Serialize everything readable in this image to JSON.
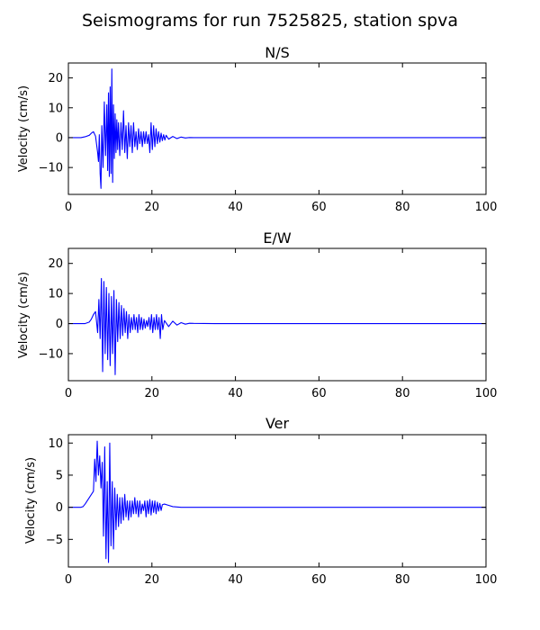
{
  "figure": {
    "title": "Seismograms for run 7525825, station spva"
  },
  "chart_data": [
    {
      "type": "line",
      "title": "N/S",
      "xlabel": "",
      "ylabel": "Velocity (cm/s)",
      "xlim": [
        0,
        100
      ],
      "ylim": [
        -19,
        25
      ],
      "xticks": [
        0,
        20,
        40,
        60,
        80,
        100
      ],
      "yticks": [
        -10,
        0,
        10,
        20
      ],
      "grid": false,
      "series": [
        {
          "color": "#0000ff",
          "x": [
            0,
            3,
            4,
            5,
            5.5,
            6,
            6.5,
            7,
            7.2,
            7.4,
            7.6,
            7.8,
            8,
            8.3,
            8.6,
            8.9,
            9.2,
            9.4,
            9.6,
            9.8,
            10,
            10.2,
            10.4,
            10.6,
            10.8,
            11,
            11.2,
            11.4,
            11.6,
            11.8,
            12,
            12.3,
            12.6,
            12.9,
            13.2,
            13.5,
            13.8,
            14.1,
            14.4,
            14.7,
            15,
            15.3,
            15.6,
            15.9,
            16.2,
            16.5,
            16.8,
            17.1,
            17.4,
            17.7,
            18,
            18.3,
            18.6,
            18.9,
            19.2,
            19.5,
            19.8,
            20.1,
            20.4,
            20.7,
            21,
            21.3,
            21.6,
            21.9,
            22.2,
            22.5,
            22.8,
            23.1,
            23.4,
            24,
            25,
            26,
            27,
            28,
            29,
            30,
            35,
            100
          ],
          "values": [
            0,
            0,
            0.3,
            0.8,
            1.5,
            2,
            0.5,
            -5,
            -8,
            1,
            -12,
            -17,
            4,
            -10,
            12,
            -6,
            11,
            -11,
            15,
            -13,
            17,
            -12,
            23,
            -15,
            11,
            -7,
            8,
            -5,
            6,
            -4,
            5,
            -6,
            5,
            -4,
            9,
            -5,
            4,
            -7,
            5,
            -3,
            4,
            -5,
            5,
            -3,
            2,
            -4,
            3,
            -2,
            2,
            -3,
            2,
            -2,
            2,
            -2,
            1,
            -5,
            5,
            -4,
            4,
            -3,
            3,
            -2,
            2,
            -1.5,
            1.5,
            -1,
            1,
            -0.8,
            0.8,
            -0.5,
            0.4,
            -0.3,
            0.2,
            -0.1,
            0.05,
            0,
            0,
            0
          ]
        }
      ]
    },
    {
      "type": "line",
      "title": "E/W",
      "xlabel": "",
      "ylabel": "Velocity (cm/s)",
      "xlim": [
        0,
        100
      ],
      "ylim": [
        -19,
        25
      ],
      "xticks": [
        0,
        20,
        40,
        60,
        80,
        100
      ],
      "yticks": [
        -10,
        0,
        10,
        20
      ],
      "grid": false,
      "series": [
        {
          "color": "#0000ff",
          "x": [
            0,
            4,
            5,
            5.5,
            6,
            6.5,
            7,
            7.3,
            7.6,
            7.9,
            8.2,
            8.5,
            8.8,
            9.1,
            9.4,
            9.7,
            10,
            10.3,
            10.6,
            10.9,
            11.2,
            11.5,
            11.8,
            12.1,
            12.4,
            12.7,
            13,
            13.3,
            13.6,
            13.9,
            14.2,
            14.5,
            14.8,
            15.1,
            15.4,
            15.7,
            16,
            16.3,
            16.6,
            16.9,
            17.2,
            17.5,
            17.8,
            18.1,
            18.4,
            18.7,
            19,
            19.3,
            19.6,
            19.9,
            20.2,
            20.5,
            20.8,
            21.1,
            21.4,
            21.7,
            22,
            22.3,
            22.6,
            23,
            24,
            25,
            26,
            27,
            28,
            29,
            30,
            35,
            100
          ],
          "values": [
            0,
            0,
            0.5,
            1.5,
            3,
            4,
            -3,
            8,
            -5,
            15,
            -16,
            14,
            -10,
            12,
            -12,
            10,
            -14,
            9,
            -10,
            11,
            -17,
            8,
            -6,
            7,
            -5,
            6,
            -4,
            5,
            -3,
            4,
            -5,
            3,
            -3,
            2,
            -2,
            3,
            -2,
            2,
            -3,
            3,
            -2,
            2,
            -2,
            1.5,
            -1.5,
            1,
            -1,
            2,
            -2,
            3,
            -3,
            2,
            -2,
            3,
            -2,
            2,
            -5,
            3,
            -2,
            1,
            -1,
            0.8,
            -0.5,
            0.3,
            -0.2,
            0.1,
            0.05,
            0,
            0
          ]
        }
      ]
    },
    {
      "type": "line",
      "title": "Ver",
      "xlabel": "",
      "ylabel": "Velocity (cm/s)",
      "xlim": [
        0,
        100
      ],
      "ylim": [
        -9.3,
        11.3
      ],
      "xticks": [
        0,
        20,
        40,
        60,
        80,
        100
      ],
      "yticks": [
        -5,
        0,
        5,
        10
      ],
      "grid": false,
      "series": [
        {
          "color": "#0000ff",
          "x": [
            0,
            3,
            3.5,
            4,
            5,
            6,
            6.3,
            6.6,
            6.9,
            7.2,
            7.5,
            7.8,
            8.1,
            8.4,
            8.7,
            9,
            9.3,
            9.6,
            9.9,
            10.2,
            10.5,
            10.8,
            11.1,
            11.4,
            11.7,
            12,
            12.3,
            12.6,
            12.9,
            13.2,
            13.5,
            13.8,
            14.1,
            14.4,
            14.7,
            15,
            15.3,
            15.6,
            15.9,
            16.2,
            16.5,
            16.8,
            17.1,
            17.4,
            17.7,
            18,
            18.3,
            18.6,
            18.9,
            19.2,
            19.5,
            19.8,
            20.1,
            20.4,
            20.7,
            21,
            21.3,
            21.6,
            21.9,
            22.2,
            22.5,
            23,
            24,
            25,
            26,
            27,
            28,
            30,
            35,
            100
          ],
          "values": [
            0,
            0,
            0.1,
            0.5,
            1.5,
            2.5,
            7.5,
            4,
            10.3,
            5,
            8,
            3,
            7,
            -4.5,
            9.4,
            -8,
            4,
            -8.6,
            10,
            -6,
            4,
            -6.5,
            3,
            -3.5,
            2,
            -3,
            1.5,
            -2.5,
            1.5,
            -2,
            2,
            -1.5,
            1,
            -2,
            1,
            -1.5,
            1,
            -1,
            1.5,
            -1,
            1,
            -1.5,
            1,
            -1,
            0.5,
            -0.5,
            1,
            -1.5,
            1,
            -1,
            1.2,
            -1.2,
            1,
            -0.8,
            1,
            -1,
            0.8,
            -0.6,
            0.6,
            -0.5,
            0.4,
            0.5,
            0.3,
            0.1,
            0.05,
            0,
            0,
            0,
            0,
            0
          ]
        }
      ]
    }
  ]
}
